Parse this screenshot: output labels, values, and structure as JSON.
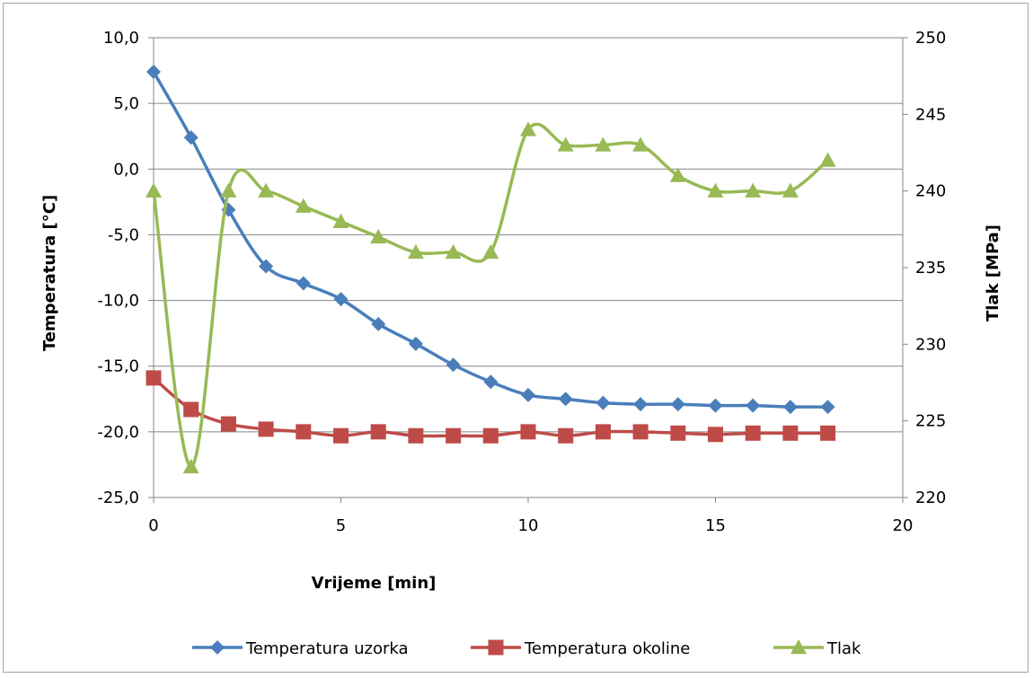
{
  "chart_data": {
    "type": "line",
    "xlabel": "Vrijeme [min]",
    "ylabel_left": "Temperatura [°C]",
    "ylabel_right": "Tlak [MPa]",
    "xlim": [
      0,
      20
    ],
    "ylim_left": [
      -25,
      10
    ],
    "ylim_right": [
      220,
      250
    ],
    "x_ticks": [
      0,
      5,
      10,
      15,
      20
    ],
    "x_tick_labels": [
      "0",
      "5",
      "10",
      "15",
      "20"
    ],
    "y_left_ticks": [
      10,
      5,
      0,
      -5,
      -10,
      -15,
      -20,
      -25
    ],
    "y_left_tick_labels": [
      "10,0",
      "5,0",
      "0,0",
      "-5,0",
      "-10,0",
      "-15,0",
      "-20,0",
      "-25,0"
    ],
    "y_right_ticks": [
      250,
      245,
      240,
      235,
      230,
      225,
      220
    ],
    "y_right_tick_labels": [
      "250",
      "245",
      "240",
      "235",
      "230",
      "225",
      "220"
    ],
    "grid": true,
    "legend_position": "bottom",
    "series": [
      {
        "name": "Temperatura uzorka",
        "axis": "left",
        "color": "#4a7ebb",
        "marker": "diamond",
        "x": [
          0,
          1,
          2,
          3,
          4,
          5,
          6,
          7,
          8,
          9,
          10,
          11,
          12,
          13,
          14,
          15,
          16,
          17,
          18
        ],
        "values": [
          7.4,
          2.4,
          -3.1,
          -7.4,
          -8.7,
          -9.9,
          -11.8,
          -13.3,
          -14.9,
          -16.2,
          -17.2,
          -17.5,
          -17.8,
          -17.9,
          -17.9,
          -18.0,
          -18.0,
          -18.1,
          -18.1
        ]
      },
      {
        "name": "Temperatura okoline",
        "axis": "left",
        "color": "#be4b48",
        "marker": "square",
        "x": [
          0,
          1,
          2,
          3,
          4,
          5,
          6,
          7,
          8,
          9,
          10,
          11,
          12,
          13,
          14,
          15,
          16,
          17,
          18
        ],
        "values": [
          -15.9,
          -18.3,
          -19.4,
          -19.8,
          -20.0,
          -20.3,
          -20.0,
          -20.3,
          -20.3,
          -20.3,
          -20.0,
          -20.3,
          -20.0,
          -20.0,
          -20.1,
          -20.2,
          -20.1,
          -20.1,
          -20.1
        ]
      },
      {
        "name": "Tlak",
        "axis": "right",
        "color": "#98b954",
        "marker": "triangle",
        "x": [
          0,
          1,
          2,
          3,
          4,
          5,
          6,
          7,
          8,
          9,
          10,
          11,
          12,
          13,
          14,
          15,
          16,
          17,
          18
        ],
        "values": [
          240,
          222,
          240,
          240,
          239,
          238,
          237,
          236,
          236,
          236,
          244,
          243,
          243,
          243,
          241,
          240,
          240,
          240,
          242
        ]
      }
    ]
  }
}
